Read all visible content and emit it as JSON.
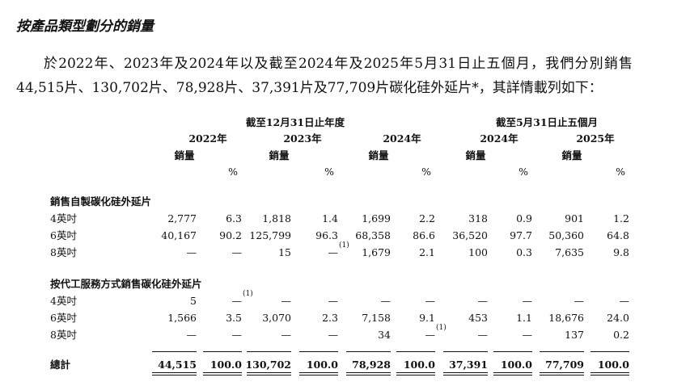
{
  "title": "按產品類型劃分的銷量",
  "paragraph": "於2022年、2023年及2024年以及截至2024年及2025年5月31日止五個月，我們分別銷售44,515片、130,702片、78,928片、37,391片及77,709片碳化硅外延片*，其詳情載列如下：",
  "table": {
    "group_headers": [
      "截至12月31日止年度",
      "截至5月31日止五個月"
    ],
    "columns": [
      {
        "year": "2022年",
        "volume": "銷量",
        "percent": "%"
      },
      {
        "year": "2023年",
        "volume": "銷量",
        "percent": "%"
      },
      {
        "year": "2024年",
        "volume": "銷量",
        "percent": "%"
      },
      {
        "year": "2024年",
        "volume": "銷量",
        "percent": "%"
      },
      {
        "year": "2025年",
        "volume": "銷量",
        "percent": "%"
      }
    ],
    "sections": [
      {
        "label": "銷售自製碳化硅外延片",
        "rows": [
          {
            "label": "4英吋",
            "cells": [
              "2,777",
              "6.3",
              "1,818",
              "1.4",
              "1,699",
              "2.2",
              "318",
              "0.9",
              "901",
              "1.2"
            ]
          },
          {
            "label": "6英吋",
            "cells": [
              "40,167",
              "90.2",
              "125,799",
              "96.3",
              "68,358",
              "86.6",
              "36,520",
              "97.7",
              "50,360",
              "64.8"
            ]
          },
          {
            "label": "8英吋",
            "cells": [
              "—",
              "—",
              "15",
              {
                "text": "—",
                "note": "(1)"
              },
              "1,679",
              "2.1",
              "100",
              "0.3",
              "7,635",
              "9.8"
            ]
          }
        ]
      },
      {
        "label": "按代工服務方式銷售碳化硅外延片",
        "rows": [
          {
            "label": "4英吋",
            "cells": [
              "5",
              {
                "text": "—",
                "note": "(1)"
              },
              "—",
              "—",
              "—",
              "—",
              "—",
              "—",
              "—",
              "—"
            ]
          },
          {
            "label": "6英吋",
            "cells": [
              "1,566",
              "3.5",
              "3,070",
              "2.3",
              "7,158",
              "9.1",
              "453",
              "1.1",
              "18,676",
              "24.0"
            ]
          },
          {
            "label": "8英吋",
            "cells": [
              "—",
              "—",
              "—",
              "—",
              "34",
              {
                "text": "—",
                "note": "(1)"
              },
              "—",
              "—",
              "137",
              "0.2"
            ]
          }
        ]
      }
    ],
    "total": {
      "label": "總計",
      "cells": [
        "44,515",
        "100.0",
        "130,702",
        "100.0",
        "78,928",
        "100.0",
        "37,391",
        "100.0",
        "77,709",
        "100.0"
      ]
    }
  }
}
